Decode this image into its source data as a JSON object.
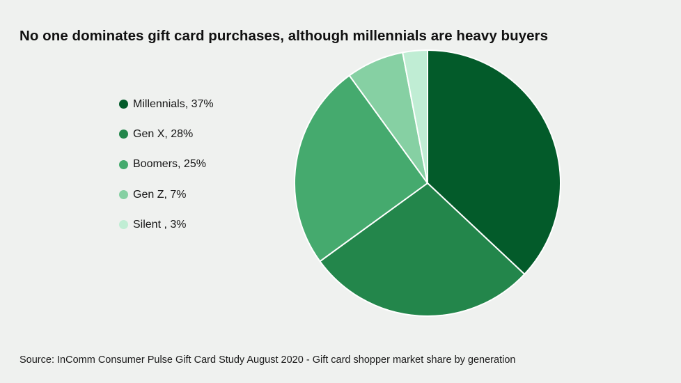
{
  "title": "No one dominates gift card purchases, although millennials are heavy buyers",
  "source": "Source: InComm Consumer Pulse Gift Card Study August 2020 - Gift card shopper market share by generation",
  "chart_data": {
    "type": "pie",
    "title": "No one dominates gift card purchases, although millennials are heavy buyers",
    "start_angle_deg": 0,
    "direction": "clockwise",
    "legend_position": "left",
    "slices": [
      {
        "name": "Millennials",
        "value": 37,
        "legend_label": "Millennials, 37%",
        "color": "#035b2a"
      },
      {
        "name": "Gen X",
        "value": 28,
        "legend_label": "Gen X, 28%",
        "color": "#23864b"
      },
      {
        "name": "Boomers",
        "value": 25,
        "legend_label": "Boomers, 25%",
        "color": "#45aa6e"
      },
      {
        "name": "Gen Z",
        "value": 7,
        "legend_label": "Gen Z, 7%",
        "color": "#86d0a3"
      },
      {
        "name": "Silent",
        "value": 3,
        "legend_label": "Silent , 3%",
        "color": "#c0edd4"
      }
    ]
  }
}
